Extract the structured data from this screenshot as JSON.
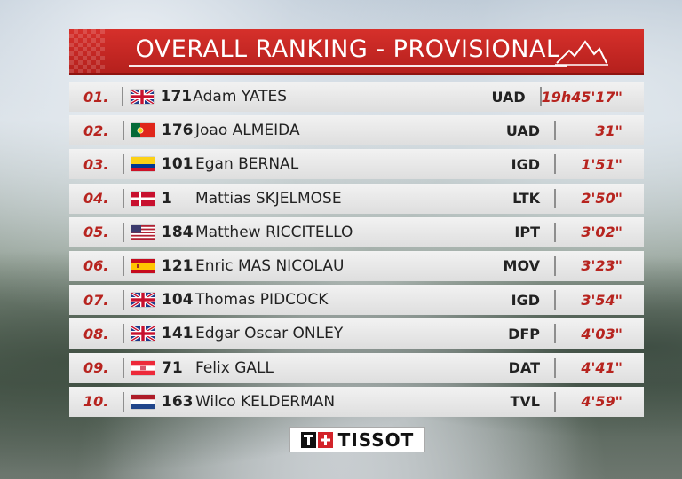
{
  "header": {
    "title": "OVERALL RANKING - PROVISIONAL"
  },
  "colors": {
    "accent": "#c0231f",
    "row_bg": "#ececec"
  },
  "rows": [
    {
      "rank": "01.",
      "flag": "gb-flag-icon",
      "bib": "171",
      "name": "Adam YATES",
      "team": "UAD",
      "time": "19h45'17\""
    },
    {
      "rank": "02.",
      "flag": "pt-flag-icon",
      "bib": "176",
      "name": "Joao ALMEIDA",
      "team": "UAD",
      "time": "31\""
    },
    {
      "rank": "03.",
      "flag": "co-flag-icon",
      "bib": "101",
      "name": "Egan BERNAL",
      "team": "IGD",
      "time": "1'51\""
    },
    {
      "rank": "04.",
      "flag": "dk-flag-icon",
      "bib": "1",
      "name": "Mattias SKJELMOSE",
      "team": "LTK",
      "time": "2'50\""
    },
    {
      "rank": "05.",
      "flag": "us-flag-icon",
      "bib": "184",
      "name": "Matthew RICCITELLO",
      "team": "IPT",
      "time": "3'02\""
    },
    {
      "rank": "06.",
      "flag": "es-flag-icon",
      "bib": "121",
      "name": "Enric MAS NICOLAU",
      "team": "MOV",
      "time": "3'23\""
    },
    {
      "rank": "07.",
      "flag": "gb-flag-icon",
      "bib": "104",
      "name": "Thomas PIDCOCK",
      "team": "IGD",
      "time": "3'54\""
    },
    {
      "rank": "08.",
      "flag": "gb-flag-icon",
      "bib": "141",
      "name": "Edgar Oscar ONLEY",
      "team": "DFP",
      "time": "4'03\""
    },
    {
      "rank": "09.",
      "flag": "at-flag-icon",
      "bib": "71",
      "name": "Felix GALL",
      "team": "DAT",
      "time": "4'41\""
    },
    {
      "rank": "10.",
      "flag": "nl-flag-icon",
      "bib": "163",
      "name": "Wilco KELDERMAN",
      "team": "TVL",
      "time": "4'59\""
    }
  ],
  "sponsor": {
    "name": "TISSOT"
  }
}
